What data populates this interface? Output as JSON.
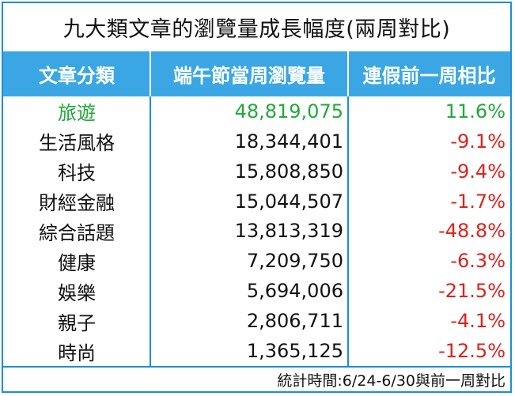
{
  "title": "九大類文章的瀏覽量成長幅度(兩周對比)",
  "header": {
    "col1": "文章分類",
    "col2": "端午節當周瀏覽量",
    "col3": "連假前一周相比"
  },
  "colors": {
    "border": "#1a8fd6",
    "header_bg": "#3aa7e4",
    "positive": "#22a83a",
    "negative": "#e3201b"
  },
  "chart_data": {
    "type": "table",
    "title": "九大類文章的瀏覽量成長幅度(兩周對比)",
    "columns": [
      "文章分類",
      "端午節當周瀏覽量",
      "連假前一周相比"
    ],
    "rows": [
      {
        "category": "旅遊",
        "views": "48,819,075",
        "change": "11.6%",
        "highlight": true
      },
      {
        "category": "生活風格",
        "views": "18,344,401",
        "change": "-9.1%"
      },
      {
        "category": "科技",
        "views": "15,808,850",
        "change": "-9.4%"
      },
      {
        "category": "財經金融",
        "views": "15,044,507",
        "change": "-1.7%"
      },
      {
        "category": "綜合話題",
        "views": "13,813,319",
        "change": "-48.8%"
      },
      {
        "category": "健康",
        "views": "7,209,750",
        "change": "-6.3%"
      },
      {
        "category": "娛樂",
        "views": "5,694,006",
        "change": "-21.5%"
      },
      {
        "category": "親子",
        "views": "2,806,711",
        "change": "-4.1%"
      },
      {
        "category": "時尚",
        "views": "1,365,125",
        "change": "-12.5%"
      }
    ]
  },
  "footer": "統計時間:6/24-6/30與前一周對比"
}
